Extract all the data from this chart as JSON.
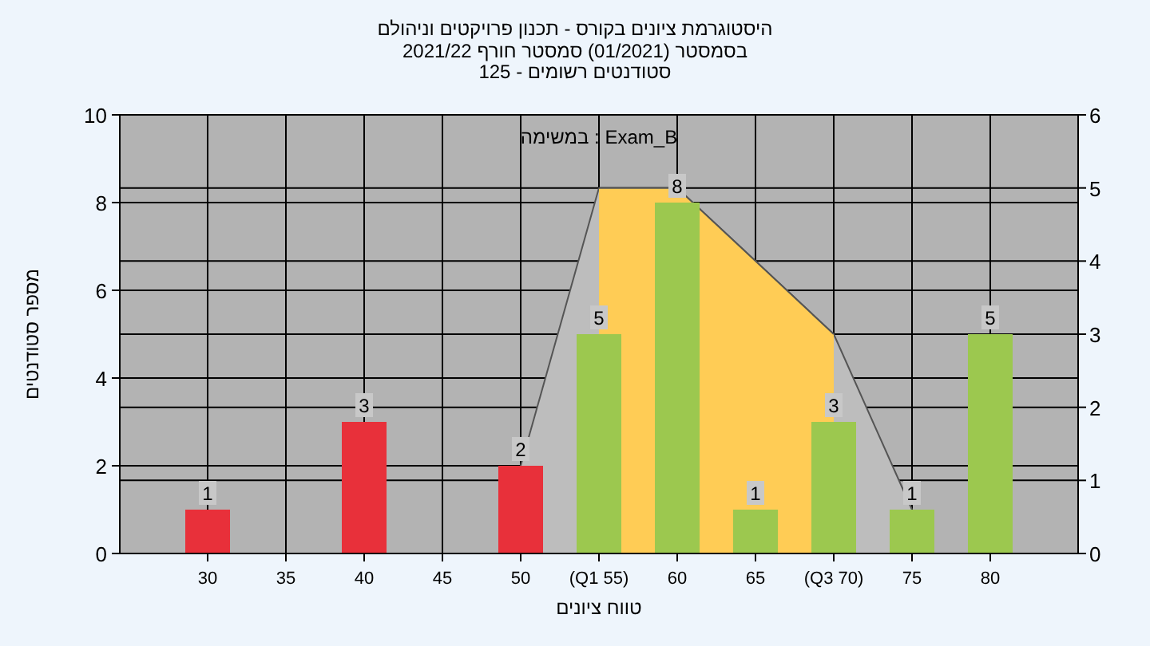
{
  "chart_data": {
    "type": "bar",
    "title": "היסטוגרמת ציונים בקורס - תכנון פרויקטים וניהולם",
    "subtitle": "בסמסטר (01/2021) סמסטר חורף 2021/22\nסטודנטים רשומים - 125",
    "annotations": [
      "במשימה : Exam_B"
    ],
    "xlabel": "טווח ציונים",
    "ylabel": "מספר סטודנטים",
    "categories": [
      "30",
      "35",
      "40",
      "45",
      "50",
      "(Q1 55)",
      "60",
      "65",
      "(Q3 70)",
      "75",
      "80"
    ],
    "series": [
      {
        "type": "area",
        "axis": "y2",
        "color": "#bdbdbd",
        "values": [
          null,
          null,
          null,
          null,
          1.2,
          5,
          5,
          4,
          3,
          0.6,
          null
        ]
      },
      {
        "type": "area",
        "axis": "y2",
        "color": "#ffcc55",
        "values": [
          null,
          null,
          null,
          null,
          null,
          5,
          5,
          4,
          3,
          null,
          null
        ]
      },
      {
        "colors": [
          "#e8303a",
          null,
          "#e8303a",
          null,
          "#e8303a",
          "#9cc84f",
          "#9cc84f",
          "#9cc84f",
          "#9cc84f",
          "#9cc84f",
          "#9cc84f"
        ],
        "values": [
          1,
          null,
          3,
          null,
          2,
          5,
          8,
          1,
          3,
          1,
          5
        ],
        "value_labels": [
          "1",
          null,
          "3",
          null,
          "2",
          "5",
          "8",
          "1",
          "3",
          "1",
          "5"
        ]
      }
    ],
    "ylim": [
      0,
      10
    ],
    "yticks": [
      0,
      2,
      4,
      6,
      8,
      10
    ],
    "y2lim": [
      0,
      6
    ],
    "y2ticks": [
      0,
      1,
      2,
      3,
      4,
      5,
      6
    ],
    "grid": true
  }
}
